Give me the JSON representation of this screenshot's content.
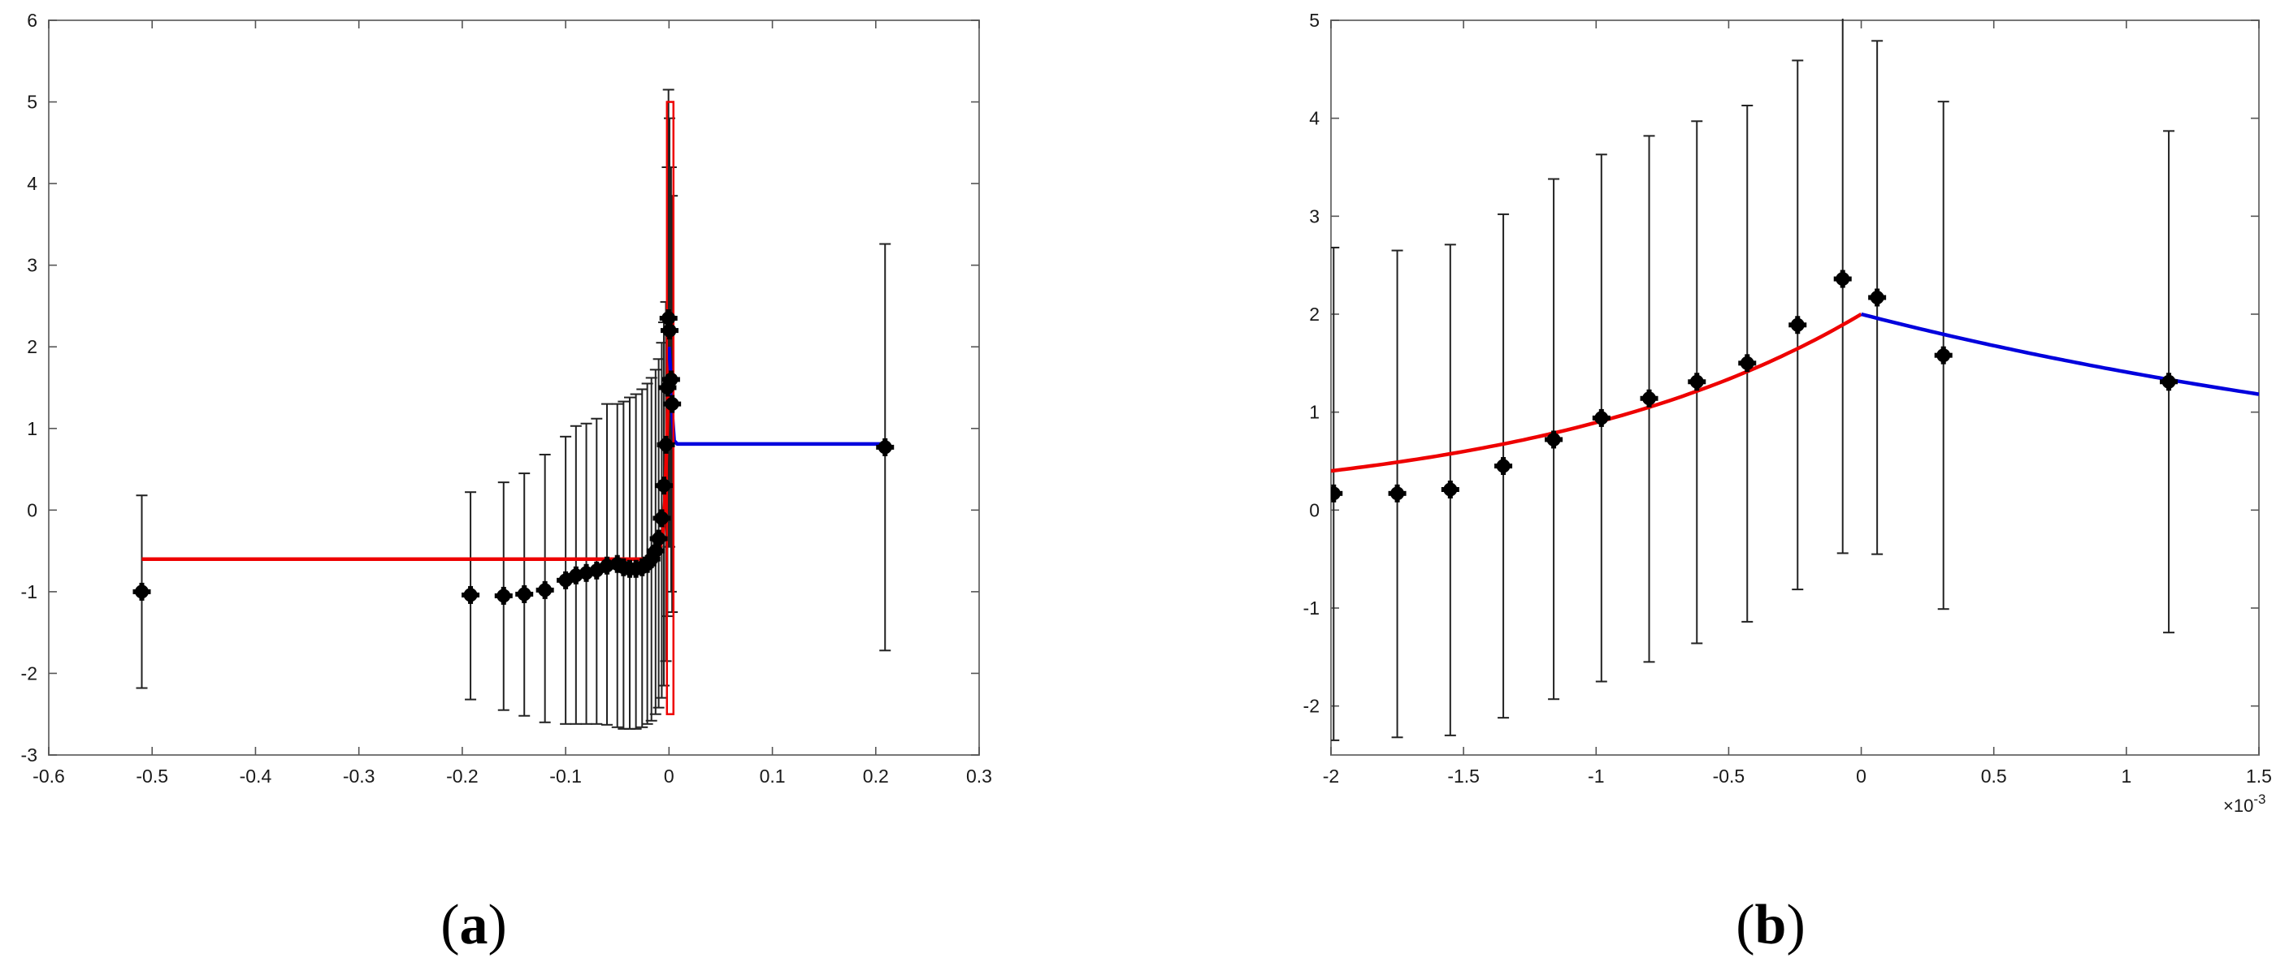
{
  "chart_data": [
    {
      "panel": "a",
      "type": "scatter",
      "caption": "(a)",
      "xlim": [
        -0.6,
        0.3
      ],
      "ylim": [
        -3,
        6
      ],
      "xticks": [
        "-0.6",
        "-0.5",
        "-0.4",
        "-0.3",
        "-0.2",
        "-0.1",
        "0",
        "0.1",
        "0.2",
        "0.3"
      ],
      "xtick_values": [
        -0.6,
        -0.5,
        -0.4,
        -0.3,
        -0.2,
        -0.1,
        0,
        0.1,
        0.2,
        0.3
      ],
      "yticks": [
        "-3",
        "-2",
        "-1",
        "0",
        "1",
        "2",
        "3",
        "4",
        "5",
        "6"
      ],
      "ytick_values": [
        -3,
        -2,
        -1,
        0,
        1,
        2,
        3,
        4,
        5,
        6
      ],
      "grid": false,
      "colors": {
        "fit_left": "#ee0000",
        "fit_right": "#0000dd",
        "points": "#000000",
        "errorbars": "#222222",
        "highlight_box": "#ee0000"
      },
      "points": [
        {
          "x": -0.51,
          "y": -1.0,
          "lo": -2.18,
          "hi": 0.18
        },
        {
          "x": -0.192,
          "y": -1.04,
          "lo": -2.32,
          "hi": 0.22
        },
        {
          "x": -0.16,
          "y": -1.05,
          "lo": -2.45,
          "hi": 0.34
        },
        {
          "x": -0.14,
          "y": -1.03,
          "lo": -2.52,
          "hi": 0.45
        },
        {
          "x": -0.12,
          "y": -0.98,
          "lo": -2.6,
          "hi": 0.68
        },
        {
          "x": -0.1,
          "y": -0.86,
          "lo": -2.62,
          "hi": 0.9
        },
        {
          "x": -0.09,
          "y": -0.8,
          "lo": -2.62,
          "hi": 1.03
        },
        {
          "x": -0.08,
          "y": -0.77,
          "lo": -2.62,
          "hi": 1.06
        },
        {
          "x": -0.07,
          "y": -0.74,
          "lo": -2.62,
          "hi": 1.12
        },
        {
          "x": -0.06,
          "y": -0.68,
          "lo": -2.63,
          "hi": 1.3
        },
        {
          "x": -0.05,
          "y": -0.66,
          "lo": -2.66,
          "hi": 1.3
        },
        {
          "x": -0.044,
          "y": -0.7,
          "lo": -2.68,
          "hi": 1.33
        },
        {
          "x": -0.038,
          "y": -0.72,
          "lo": -2.68,
          "hi": 1.38
        },
        {
          "x": -0.032,
          "y": -0.72,
          "lo": -2.68,
          "hi": 1.42
        },
        {
          "x": -0.026,
          "y": -0.7,
          "lo": -2.66,
          "hi": 1.48
        },
        {
          "x": -0.021,
          "y": -0.66,
          "lo": -2.62,
          "hi": 1.55
        },
        {
          "x": -0.017,
          "y": -0.6,
          "lo": -2.58,
          "hi": 1.62
        },
        {
          "x": -0.013,
          "y": -0.5,
          "lo": -2.5,
          "hi": 1.72
        },
        {
          "x": -0.01,
          "y": -0.35,
          "lo": -2.42,
          "hi": 1.85
        },
        {
          "x": -0.007,
          "y": -0.1,
          "lo": -2.3,
          "hi": 2.05
        },
        {
          "x": -0.005,
          "y": 0.3,
          "lo": -2.15,
          "hi": 2.3
        },
        {
          "x": -0.003,
          "y": 0.8,
          "lo": -1.85,
          "hi": 2.55
        },
        {
          "x": -0.0015,
          "y": 1.5,
          "lo": -1.3,
          "hi": 4.2
        },
        {
          "x": -0.0005,
          "y": 2.35,
          "lo": -0.45,
          "hi": 5.15
        },
        {
          "x": 0.0005,
          "y": 2.2,
          "lo": -0.45,
          "hi": 4.8
        },
        {
          "x": 0.002,
          "y": 1.6,
          "lo": -1.0,
          "hi": 4.2
        },
        {
          "x": 0.003,
          "y": 1.3,
          "lo": -1.25,
          "hi": 3.85
        },
        {
          "x": 0.209,
          "y": 0.77,
          "lo": -1.72,
          "hi": 3.26
        }
      ],
      "fit_left": [
        {
          "x": -0.51,
          "y": -0.6
        },
        {
          "x": -0.02,
          "y": -0.6
        },
        {
          "x": -0.01,
          "y": -0.55
        },
        {
          "x": -0.006,
          "y": -0.3
        },
        {
          "x": -0.004,
          "y": 0.1
        },
        {
          "x": -0.002,
          "y": 0.9
        },
        {
          "x": -0.001,
          "y": 1.4
        },
        {
          "x": 0.0,
          "y": 2.0
        }
      ],
      "fit_right": [
        {
          "x": 0.0,
          "y": 2.0
        },
        {
          "x": 0.0015,
          "y": 1.7
        },
        {
          "x": 0.003,
          "y": 1.2
        },
        {
          "x": 0.005,
          "y": 0.85
        },
        {
          "x": 0.008,
          "y": 0.81
        },
        {
          "x": 0.209,
          "y": 0.81
        }
      ],
      "highlight_box": {
        "x0": -0.002,
        "x1": 0.0035,
        "y0": -2.5,
        "y1": 5.0
      }
    },
    {
      "panel": "b",
      "type": "scatter",
      "caption": "(b)",
      "xlim": [
        -2,
        1.5
      ],
      "ylim": [
        -2.5,
        5
      ],
      "xticks": [
        "-2",
        "-1.5",
        "-1",
        "-0.5",
        "0",
        "0.5",
        "1",
        "1.5"
      ],
      "xtick_values": [
        -2,
        -1.5,
        -1,
        -0.5,
        0,
        0.5,
        1,
        1.5
      ],
      "yticks": [
        "-2",
        "-1",
        "0",
        "1",
        "2",
        "3",
        "4",
        "5"
      ],
      "ytick_values": [
        -2,
        -1,
        0,
        1,
        2,
        3,
        4,
        5
      ],
      "x_exponent_base": "×10",
      "x_exponent_power": "-3",
      "grid": false,
      "colors": {
        "fit_left": "#ee0000",
        "fit_right": "#0000dd",
        "points": "#000000",
        "errorbars": "#222222"
      },
      "points": [
        {
          "x": -1.99,
          "y": 0.17,
          "lo": -2.35,
          "hi": 2.68
        },
        {
          "x": -1.75,
          "y": 0.17,
          "lo": -2.32,
          "hi": 2.65
        },
        {
          "x": -1.55,
          "y": 0.21,
          "lo": -2.3,
          "hi": 2.71
        },
        {
          "x": -1.35,
          "y": 0.45,
          "lo": -2.12,
          "hi": 3.02
        },
        {
          "x": -1.16,
          "y": 0.72,
          "lo": -1.93,
          "hi": 3.38
        },
        {
          "x": -0.98,
          "y": 0.94,
          "lo": -1.75,
          "hi": 3.63
        },
        {
          "x": -0.8,
          "y": 1.14,
          "lo": -1.55,
          "hi": 3.82
        },
        {
          "x": -0.62,
          "y": 1.31,
          "lo": -1.36,
          "hi": 3.97
        },
        {
          "x": -0.43,
          "y": 1.5,
          "lo": -1.14,
          "hi": 4.13
        },
        {
          "x": -0.24,
          "y": 1.89,
          "lo": -0.81,
          "hi": 4.59
        },
        {
          "x": -0.07,
          "y": 2.36,
          "lo": -0.44,
          "hi": 5.16
        },
        {
          "x": 0.06,
          "y": 2.17,
          "lo": -0.45,
          "hi": 4.79
        },
        {
          "x": 0.31,
          "y": 1.58,
          "lo": -1.01,
          "hi": 4.17
        },
        {
          "x": 1.16,
          "y": 1.31,
          "lo": -1.25,
          "hi": 3.87
        }
      ],
      "fit_left": {
        "x0": -2,
        "x1": 0,
        "amplitude": 2.0,
        "rate": 0.805
      },
      "fit_right": {
        "x0": 0,
        "x1": 1.5,
        "amplitude": 2.0,
        "rate": 0.35
      }
    }
  ]
}
